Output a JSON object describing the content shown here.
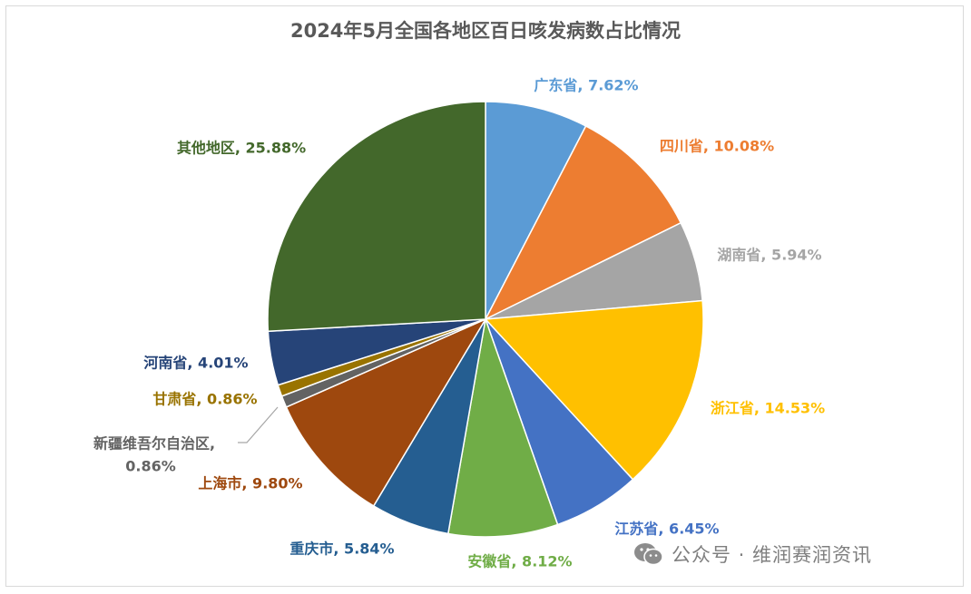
{
  "chart_data": {
    "type": "pie",
    "title": "2024年5月全国各地区百日咳发病数占比情况",
    "slices": [
      {
        "name": "广东省",
        "value": 7.62,
        "label": "广东省, 7.62%",
        "color": "#5b9bd5"
      },
      {
        "name": "四川省",
        "value": 10.08,
        "label": "四川省, 10.08%",
        "color": "#ed7d31"
      },
      {
        "name": "湖南省",
        "value": 5.94,
        "label": "湖南省, 5.94%",
        "color": "#a5a5a5"
      },
      {
        "name": "浙江省",
        "value": 14.53,
        "label": "浙江省, 14.53%",
        "color": "#ffc000"
      },
      {
        "name": "江苏省",
        "value": 6.45,
        "label": "江苏省, 6.45%",
        "color": "#4472c4"
      },
      {
        "name": "安徽省",
        "value": 8.12,
        "label": "安徽省, 8.12%",
        "color": "#70ad47"
      },
      {
        "name": "重庆市",
        "value": 5.84,
        "label": "重庆市, 5.84%",
        "color": "#255e91"
      },
      {
        "name": "上海市",
        "value": 9.8,
        "label": "上海市, 9.80%",
        "color": "#9e480e"
      },
      {
        "name": "新疆维吾尔自治区",
        "value": 0.86,
        "label": "新疆维吾尔自治区,\n0.86%",
        "color": "#636363"
      },
      {
        "name": "甘肃省",
        "value": 0.86,
        "label": "甘肃省, 0.86%",
        "color": "#997300"
      },
      {
        "name": "河南省",
        "value": 4.01,
        "label": "河南省, 4.01%",
        "color": "#264478"
      },
      {
        "name": "其他地区",
        "value": 25.88,
        "label": "其他地区, 25.88%",
        "color": "#43682b"
      }
    ]
  },
  "watermark": {
    "icon": "wechat-icon",
    "text": "公众号 · 维润赛润资讯"
  }
}
